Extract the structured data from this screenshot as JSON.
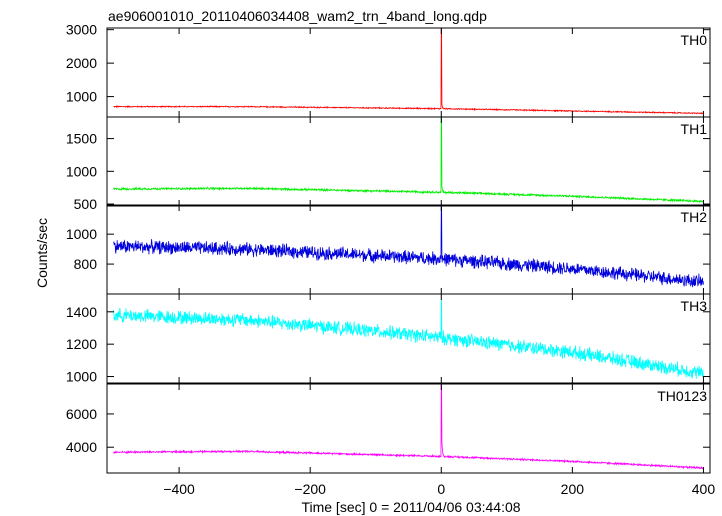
{
  "title": "ae906001010_20110406034408_wam2_trn_4band_long.qdp",
  "xlabel": "Time [sec] 0 = 2011/04/06 03:44:08",
  "ylabel": "Counts/sec",
  "chart_data": {
    "type": "line",
    "title": "ae906001010_20110406034408_wam2_trn_4band_long.qdp",
    "xlabel": "Time [sec] 0 = 2011/04/06 03:44:08",
    "ylabel": "Counts/sec",
    "xlim": [
      -510,
      410
    ],
    "xticks": [
      -400,
      -200,
      0,
      200,
      400
    ],
    "grid": false,
    "panels": [
      {
        "name": "TH0",
        "color": "#ff0000",
        "ylim": [
          390,
          3050
        ],
        "yticks": [
          1000,
          2000,
          3000
        ],
        "trend": [
          [
            -500,
            700
          ],
          [
            -300,
            700
          ],
          [
            0,
            640
          ],
          [
            200,
            570
          ],
          [
            400,
            500
          ]
        ],
        "noise": 14,
        "spike": 3050,
        "spike_decay": 180
      },
      {
        "name": "TH1",
        "color": "#00ee00",
        "ylim": [
          470,
          1830
        ],
        "yticks": [
          500,
          1000,
          1500
        ],
        "trend": [
          [
            -500,
            730
          ],
          [
            -300,
            740
          ],
          [
            0,
            680
          ],
          [
            200,
            620
          ],
          [
            400,
            540
          ]
        ],
        "noise": 13,
        "spike": 1830,
        "spike_decay": 120
      },
      {
        "name": "TH2",
        "color": "#0000dd",
        "ylim": [
          600,
          1195
        ],
        "yticks": [
          800,
          1000
        ],
        "trend": [
          [
            -500,
            920
          ],
          [
            -300,
            900
          ],
          [
            0,
            835
          ],
          [
            200,
            770
          ],
          [
            400,
            680
          ]
        ],
        "noise": 38,
        "spike": 1195,
        "spike_decay": 0
      },
      {
        "name": "TH3",
        "color": "#00ffff",
        "ylim": [
          960,
          1510
        ],
        "yticks": [
          1000,
          1200,
          1400
        ],
        "trend": [
          [
            -500,
            1380
          ],
          [
            -300,
            1350
          ],
          [
            -100,
            1280
          ],
          [
            0,
            1240
          ],
          [
            200,
            1150
          ],
          [
            400,
            1020
          ]
        ],
        "noise": 36,
        "spike": 1470,
        "spike_decay": 0
      },
      {
        "name": "TH0123",
        "color": "#ff00ff",
        "ylim": [
          2450,
          7800
        ],
        "yticks": [
          4000,
          6000
        ],
        "trend": [
          [
            -500,
            3700
          ],
          [
            -300,
            3750
          ],
          [
            0,
            3450
          ],
          [
            200,
            3150
          ],
          [
            400,
            2750
          ]
        ],
        "noise": 45,
        "spike": 7800,
        "spike_decay": 1200
      }
    ]
  }
}
